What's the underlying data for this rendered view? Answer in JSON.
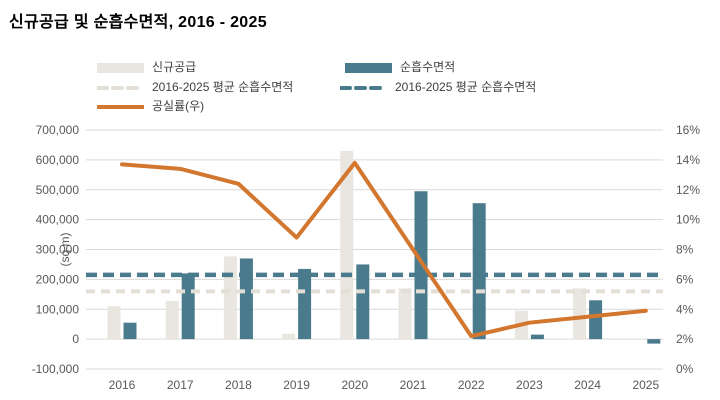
{
  "title": "신규공급 및 순흡수면적, 2016 - 2025",
  "legend": [
    {
      "label": "신규공급",
      "type": "bar",
      "color": "#e9e6e0"
    },
    {
      "label": "순흡수면적",
      "type": "bar",
      "color": "#4a7b8c"
    },
    {
      "label": "2016-2025 평균 순흡수면적",
      "type": "dashed",
      "color": "#e3dfd7"
    },
    {
      "label": "2016-2025 평균 순흡수면적",
      "type": "dashed",
      "color": "#4a7b8c"
    },
    {
      "label": "공실률(우)",
      "type": "line",
      "color": "#d3762e"
    }
  ],
  "chart_data": {
    "type": "bar",
    "subtype": "grouped-bars-with-line-combo",
    "title": "신규공급 및 순흡수면적, 2016 - 2025",
    "categories": [
      "2016",
      "2017",
      "2018",
      "2019",
      "2020",
      "2021",
      "2022",
      "2023",
      "2024",
      "2025"
    ],
    "series": [
      {
        "name": "신규공급",
        "type": "bar",
        "axis": "left",
        "color": "#e9e6e0",
        "values": [
          110000,
          128000,
          277000,
          18000,
          630000,
          170000,
          0,
          95000,
          170000,
          0
        ]
      },
      {
        "name": "순흡수면적",
        "type": "bar",
        "axis": "left",
        "color": "#4a7b8c",
        "values": [
          55000,
          220000,
          270000,
          235000,
          250000,
          495000,
          455000,
          15000,
          130000,
          -15000
        ]
      },
      {
        "name": "2016-2025 평균 순흡수면적",
        "type": "dashed-line",
        "axis": "left",
        "color": "#e3dfd7",
        "value": 160000
      },
      {
        "name": "2016-2025 평균 순흡수면적",
        "type": "dashed-line",
        "axis": "left",
        "color": "#4a7b8c",
        "value": 215000
      },
      {
        "name": "공실률(우)",
        "type": "line",
        "axis": "right",
        "color": "#d3762e",
        "values": [
          13.7,
          13.4,
          12.4,
          8.8,
          13.8,
          8.0,
          2.2,
          3.1,
          3.5,
          3.9
        ]
      }
    ],
    "y_left": {
      "label": "(sq m)",
      "min": -100000,
      "max": 700000,
      "tick_values": [
        700000,
        600000,
        500000,
        400000,
        300000,
        200000,
        100000,
        0,
        -100000
      ],
      "tick_labels": [
        "700,000",
        "600,000",
        "500,000",
        "400,000",
        "300,000",
        "200,000",
        "100,000",
        "0",
        "-100,000"
      ]
    },
    "y_right": {
      "label": "",
      "min": 0,
      "max": 16,
      "tick_values": [
        16,
        14,
        12,
        10,
        8,
        6,
        4,
        2,
        0
      ],
      "tick_labels": [
        "16%",
        "14%",
        "12%",
        "10%",
        "8%",
        "6%",
        "4%",
        "2%",
        "0%"
      ]
    },
    "grid": true,
    "gridline_color": "#d9d9d9",
    "legend_position": "top"
  }
}
